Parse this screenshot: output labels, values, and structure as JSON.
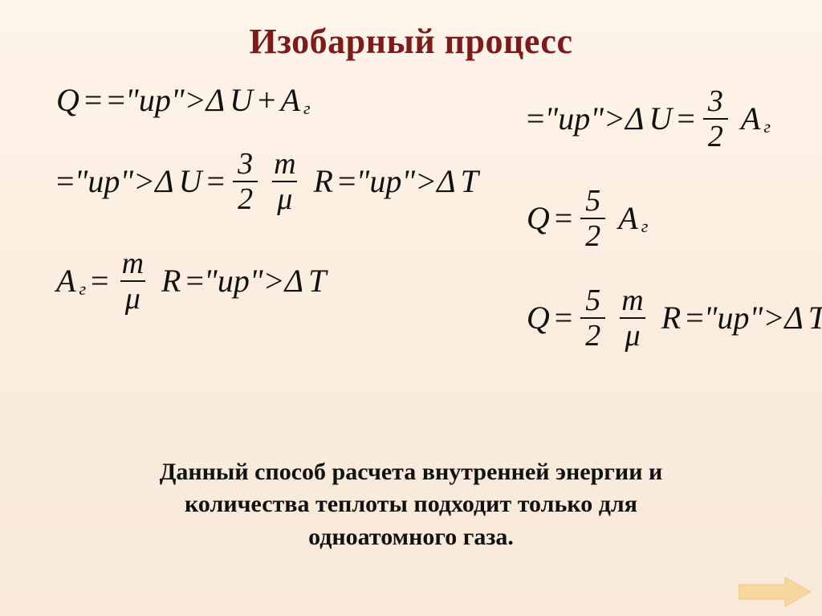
{
  "title": {
    "text": "Изобарный процесс",
    "color": "#7d1a1a"
  },
  "equations": {
    "left": [
      {
        "type": "inline",
        "parts": [
          "Q",
          " = ",
          "ΔU",
          " + ",
          "A",
          {
            "sub": "г"
          }
        ]
      },
      {
        "type": "frac_prefix",
        "prefix": [
          "ΔU",
          " = "
        ],
        "frac1": {
          "num": "3",
          "den": "2"
        },
        "frac2": {
          "num": "m",
          "den": "μ"
        },
        "suffix": [
          " ",
          "R",
          "ΔT"
        ]
      },
      {
        "type": "frac_prefix",
        "prefix": [
          "A",
          {
            "sub": "г"
          },
          " = "
        ],
        "frac2": {
          "num": "m",
          "den": "μ"
        },
        "suffix": [
          " ",
          "R",
          "ΔT"
        ]
      }
    ],
    "right": [
      {
        "type": "frac_prefix",
        "prefix": [
          "ΔU",
          " = "
        ],
        "frac1": {
          "num": "3",
          "den": "2"
        },
        "suffix": [
          " ",
          "A",
          {
            "sub": "г"
          }
        ]
      },
      {
        "type": "frac_prefix",
        "prefix": [
          "Q",
          " = "
        ],
        "frac1": {
          "num": "5",
          "den": "2"
        },
        "suffix": [
          " ",
          "A",
          {
            "sub": "г"
          }
        ]
      },
      {
        "type": "frac_prefix",
        "prefix": [
          "Q",
          " = "
        ],
        "frac1": {
          "num": "5",
          "den": "2"
        },
        "frac2": {
          "num": "m",
          "den": "μ"
        },
        "suffix": [
          " ",
          "R",
          "ΔT"
        ]
      }
    ]
  },
  "caption": {
    "line1": "Данный способ расчета внутренней энергии и",
    "line2": "количества теплоты подходит только для",
    "line3": "одноатомного газа."
  },
  "arrow": {
    "fill": "#f6d7a0",
    "stroke": "#f2c87d"
  },
  "style": {
    "title_fontsize": 44,
    "eq_fontsize": 40,
    "caption_fontsize": 30,
    "text_color": "#111111",
    "bg_gradient_top": "#fff4ea",
    "bg_gradient_bottom": "#f8e9d8"
  }
}
